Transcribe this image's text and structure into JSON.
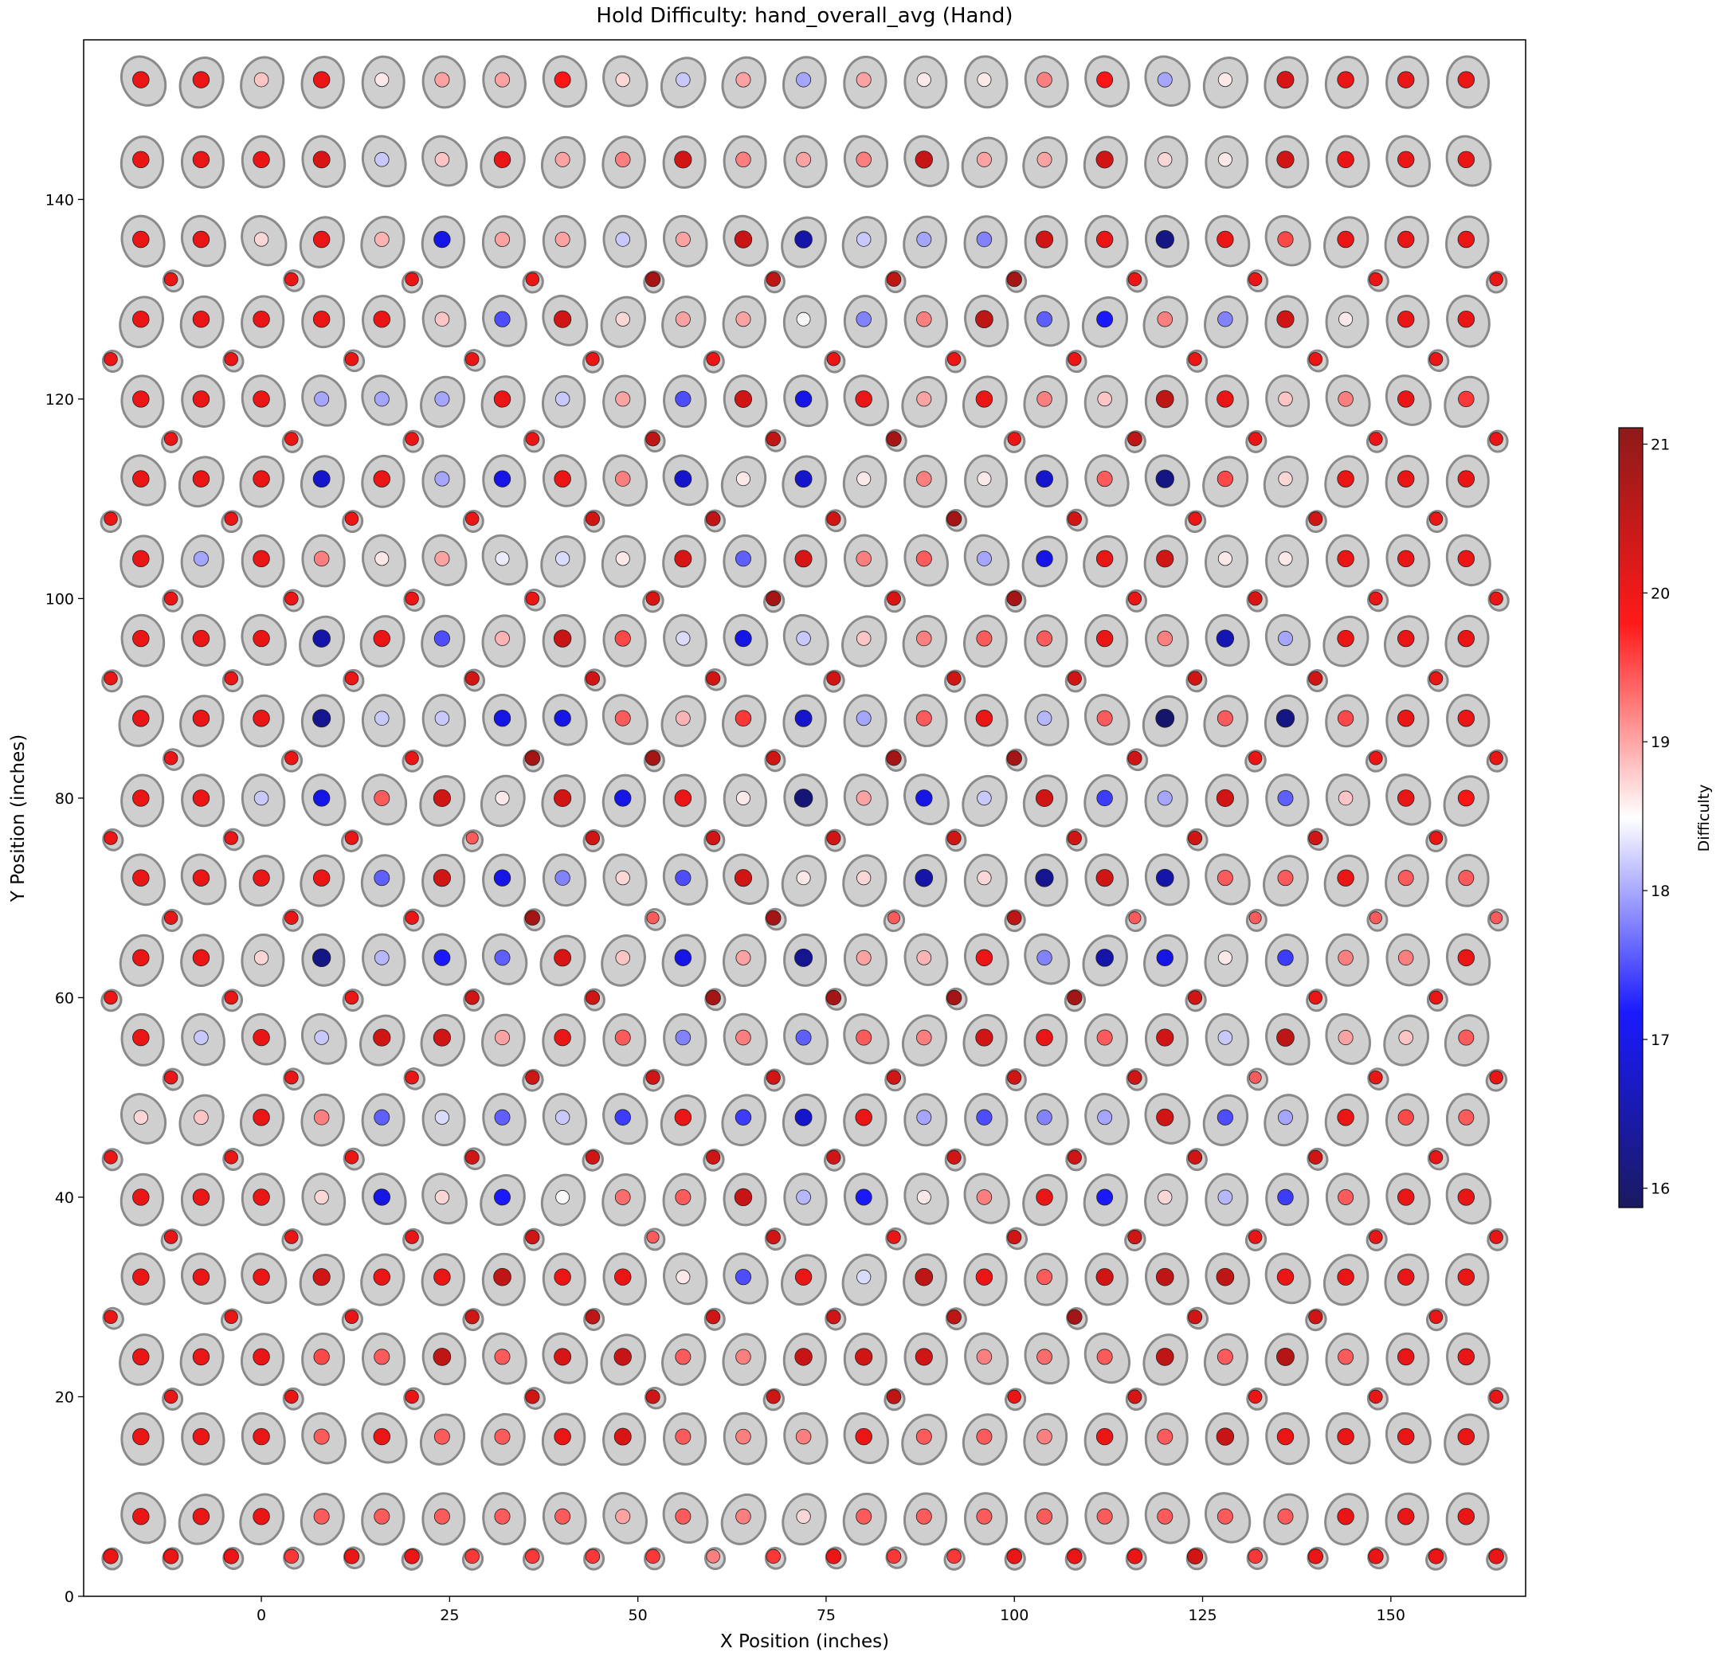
{
  "chart_data": {
    "type": "scatter",
    "title": "Hold Difficulty: hand_overall_avg (Hand)",
    "x_label": "X Position (inches)",
    "y_label": "Y Position (inches)",
    "colorbar_label": "Difficulty",
    "colormap": "seismic",
    "clim": [
      15.87,
      21.11
    ],
    "colorbar_ticks": [
      16,
      17,
      18,
      19,
      20,
      21
    ],
    "xlim": [
      -23.6,
      167.9
    ],
    "ylim": [
      0,
      156
    ],
    "xticks": [
      0,
      25,
      50,
      75,
      100,
      125,
      150
    ],
    "yticks": [
      0,
      20,
      40,
      60,
      80,
      100,
      120,
      140
    ],
    "groups": [
      {
        "x": [
          -16,
          -8,
          0,
          8,
          16,
          24,
          32,
          40,
          48,
          56,
          64,
          72,
          80,
          88,
          96,
          104,
          112,
          120,
          128,
          136,
          144,
          152,
          160
        ],
        "y": [
          152,
          144,
          136,
          128,
          120,
          112,
          104,
          96,
          88,
          80,
          72,
          64,
          56,
          48,
          40,
          32,
          24,
          16,
          8
        ],
        "values": [
          [
            20,
            20,
            18.8,
            20,
            18.6,
            19,
            19,
            19.8,
            18.7,
            18.2,
            19,
            18,
            19,
            18.6,
            18.6,
            19.2,
            19.8,
            18,
            18.6,
            20.2,
            20,
            20,
            20
          ],
          [
            20,
            20,
            20,
            20.2,
            18.2,
            18.8,
            20,
            19,
            19.2,
            20.3,
            19.2,
            19,
            19.2,
            20.4,
            19,
            19,
            20.3,
            18.7,
            18.6,
            20.3,
            20,
            20,
            20
          ],
          [
            20,
            20,
            18.7,
            20,
            18.9,
            17,
            19,
            19,
            18.2,
            19,
            20.4,
            16.5,
            18.2,
            18,
            17.8,
            20.3,
            20,
            16.2,
            20,
            19.5,
            20,
            20,
            20
          ],
          [
            20,
            20,
            20,
            20,
            20,
            18.8,
            17.5,
            20.3,
            18.7,
            19,
            19,
            18.5,
            17.8,
            19.2,
            20.5,
            17.6,
            17.2,
            19.2,
            17.8,
            20.3,
            18.6,
            20,
            20
          ],
          [
            20,
            20,
            20,
            18,
            18,
            18,
            20,
            18.2,
            19,
            17.5,
            20.3,
            17,
            20,
            19,
            20,
            19.2,
            18.8,
            20.5,
            20,
            18.8,
            19.2,
            20,
            19.6
          ],
          [
            20,
            20,
            20,
            16.8,
            20,
            18,
            17,
            20,
            19.2,
            16.8,
            18.6,
            16.8,
            18.6,
            19.2,
            18.6,
            16.8,
            19.4,
            16.2,
            19.5,
            18.7,
            20,
            20,
            20
          ],
          [
            20,
            18,
            20,
            19.2,
            18.6,
            19,
            18.4,
            18.3,
            18.6,
            20.2,
            17.6,
            20.2,
            19.2,
            19.4,
            18,
            17,
            20,
            20.3,
            18.6,
            18.6,
            20,
            20,
            20
          ],
          [
            20,
            20,
            20,
            16.5,
            20,
            17.5,
            18.9,
            20.4,
            19.5,
            18.3,
            17,
            18.2,
            18.8,
            19.2,
            19.4,
            19.4,
            20,
            19.2,
            16.6,
            18,
            20,
            20,
            20
          ],
          [
            20,
            20,
            20,
            16.3,
            18.2,
            18.2,
            17,
            17,
            19.4,
            18.9,
            19.6,
            16.8,
            18,
            19.4,
            20,
            18.1,
            19.4,
            16,
            19.4,
            16.2,
            19.5,
            20,
            20
          ],
          [
            20,
            20,
            18.2,
            17,
            19.4,
            20.3,
            18.6,
            20.3,
            17,
            20,
            18.6,
            16.1,
            19,
            17,
            18.2,
            20.3,
            17.4,
            18,
            20.3,
            17.6,
            18.8,
            20,
            19.8
          ],
          [
            20,
            20,
            20,
            20,
            17.6,
            20.3,
            17,
            17.8,
            18.7,
            17.5,
            20.3,
            18.6,
            18.7,
            16.5,
            18.7,
            16.3,
            20.3,
            16.5,
            19.4,
            19.4,
            20,
            19.4,
            19.4
          ],
          [
            20,
            20,
            18.7,
            16.2,
            18.1,
            17.2,
            17.6,
            20.2,
            18.8,
            17,
            19,
            16.3,
            19,
            18.9,
            20,
            17.8,
            16.5,
            17,
            18.6,
            17.4,
            19.2,
            19.2,
            20
          ],
          [
            20,
            18.2,
            20,
            18.2,
            20.3,
            20.3,
            19,
            20,
            19.4,
            17.8,
            19.2,
            17.6,
            19.4,
            19.2,
            20.3,
            20,
            19.4,
            20.3,
            18.2,
            20.5,
            19,
            18.8,
            19.4
          ],
          [
            18.7,
            18.8,
            20,
            19.2,
            17.6,
            18.3,
            17.6,
            18.2,
            17.4,
            20,
            17.4,
            16.8,
            20,
            18,
            17.5,
            17.8,
            18,
            20.3,
            17.5,
            18,
            20,
            19.5,
            19.4
          ],
          [
            20,
            20,
            20,
            18.7,
            17,
            18.7,
            17.2,
            18.5,
            19.3,
            19.4,
            20.4,
            18.1,
            17.2,
            18.6,
            19.2,
            20,
            17.2,
            18.7,
            18.1,
            17.4,
            19.4,
            20,
            20
          ],
          [
            20,
            20,
            20,
            20.3,
            20,
            20,
            20.5,
            20,
            20,
            18.6,
            17.5,
            20,
            18.3,
            20.5,
            20,
            19.4,
            20.3,
            20.5,
            20.5,
            20,
            20,
            20,
            20
          ],
          [
            20,
            20,
            20,
            19.5,
            19.4,
            20.5,
            19.4,
            20.2,
            20.4,
            19.4,
            19.2,
            20.4,
            20.3,
            20.3,
            19.2,
            19.3,
            19.4,
            20.5,
            19.4,
            20.6,
            19.4,
            20,
            20
          ],
          [
            20,
            20,
            20,
            19.4,
            20,
            19.4,
            19.4,
            20,
            20.2,
            19.4,
            19.2,
            19.2,
            20,
            19.4,
            19.4,
            19.2,
            20,
            19.4,
            20.4,
            20,
            20,
            20,
            20
          ],
          [
            20,
            20,
            20,
            19.4,
            19.4,
            19.4,
            19.4,
            19.4,
            19,
            19.4,
            19.2,
            18.7,
            19.4,
            19.4,
            19.4,
            19.4,
            19.4,
            19.4,
            19.4,
            19.4,
            20,
            20,
            20
          ]
        ]
      },
      {
        "x": [
          -12,
          4,
          20,
          36,
          52,
          68,
          84,
          100,
          116,
          132,
          148,
          164
        ],
        "y": [
          132,
          116,
          100,
          84,
          68,
          52,
          36,
          20
        ],
        "values": [
          [
            20,
            20,
            20,
            20,
            20.8,
            20.5,
            20.5,
            20.8,
            20,
            20,
            20,
            20
          ],
          [
            20,
            20,
            20,
            20,
            20.5,
            20.5,
            20.8,
            20,
            20.5,
            20,
            20,
            20
          ],
          [
            20,
            20,
            20,
            20,
            20.2,
            20.8,
            20.2,
            20.8,
            20,
            20.2,
            20,
            20
          ],
          [
            20,
            20,
            20,
            20.8,
            20.8,
            20.3,
            20.8,
            20.8,
            20.3,
            20,
            20,
            20
          ],
          [
            20,
            20,
            20,
            20.8,
            19.4,
            20.8,
            19.4,
            20.5,
            19.4,
            19.4,
            19.4,
            19.4
          ],
          [
            20,
            20,
            20,
            20.3,
            20.3,
            20.3,
            20.3,
            20.3,
            20.3,
            19.4,
            20,
            20
          ],
          [
            20,
            20,
            20,
            20.3,
            19.4,
            20.3,
            20,
            20.3,
            20.3,
            20,
            20,
            20
          ],
          [
            20,
            20,
            20,
            20.3,
            20.3,
            20.3,
            20.5,
            20,
            20.2,
            20,
            20,
            20
          ]
        ]
      },
      {
        "x": [
          -20,
          -4,
          12,
          28,
          44,
          60,
          76,
          92,
          108,
          124,
          140,
          156
        ],
        "y": [
          124,
          108,
          92,
          76,
          60,
          44,
          28
        ],
        "values": [
          [
            20,
            20,
            20,
            20,
            20,
            20,
            20,
            20,
            20,
            20,
            20,
            20
          ],
          [
            20,
            20,
            20,
            20,
            20.3,
            20.5,
            20.3,
            20.8,
            20.3,
            20,
            20.3,
            20
          ],
          [
            20,
            20,
            20,
            20.3,
            20.3,
            20.3,
            20.3,
            20.3,
            20.3,
            20.3,
            20.3,
            20
          ],
          [
            20,
            20,
            20,
            19.4,
            20.3,
            20.3,
            20.3,
            20.3,
            20.3,
            20.3,
            20.3,
            20
          ],
          [
            20,
            20,
            20,
            20.3,
            20.3,
            20.8,
            20.8,
            20.8,
            20.8,
            20.3,
            20,
            20
          ],
          [
            20,
            20,
            20,
            20.3,
            20.3,
            20.3,
            20.3,
            20.3,
            20.3,
            20.3,
            20.3,
            20
          ],
          [
            20,
            20,
            20,
            20.3,
            20.5,
            20.3,
            20.3,
            20.5,
            20.8,
            20.3,
            20.3,
            20
          ]
        ]
      },
      {
        "x": [
          -20,
          -12,
          -4,
          4,
          12,
          20,
          28,
          36,
          44,
          52,
          60,
          68,
          76,
          84,
          92,
          100,
          108,
          116,
          124,
          132,
          140,
          148,
          156,
          164
        ],
        "y": [
          4
        ],
        "values": [
          [
            20,
            20,
            20,
            19.6,
            20,
            20,
            19.6,
            19.6,
            19.6,
            19.6,
            19.2,
            19.6,
            20,
            19.6,
            19.6,
            20,
            20,
            20,
            20.3,
            19.6,
            20,
            20,
            20,
            20
          ]
        ]
      }
    ]
  }
}
